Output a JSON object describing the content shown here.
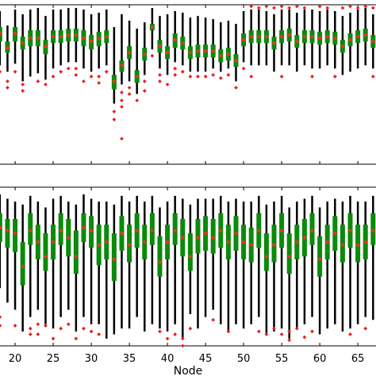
{
  "chart_data": [
    {
      "type": "boxplot",
      "panel": "top",
      "x": [
        18,
        19,
        20,
        21,
        22,
        23,
        24,
        25,
        26,
        27,
        28,
        29,
        30,
        31,
        32,
        33,
        34,
        35,
        36,
        37,
        38,
        39,
        40,
        41,
        42,
        43,
        44,
        45,
        46,
        47,
        48,
        49,
        50,
        51,
        52,
        53,
        54,
        55,
        56,
        57,
        58,
        59,
        60,
        61,
        62,
        63,
        64,
        65,
        66,
        67
      ],
      "median": [
        0.82,
        0.73,
        0.82,
        0.76,
        0.79,
        0.79,
        0.74,
        0.8,
        0.8,
        0.81,
        0.81,
        0.79,
        0.77,
        0.79,
        0.8,
        0.52,
        0.62,
        0.7,
        0.55,
        0.69,
        0.86,
        0.74,
        0.7,
        0.78,
        0.76,
        0.7,
        0.71,
        0.71,
        0.71,
        0.68,
        0.69,
        0.65,
        0.78,
        0.8,
        0.8,
        0.8,
        0.76,
        0.8,
        0.81,
        0.77,
        0.8,
        0.8,
        0.79,
        0.8,
        0.79,
        0.74,
        0.78,
        0.8,
        0.81,
        0.77
      ],
      "q1": [
        0.77,
        0.7,
        0.77,
        0.72,
        0.74,
        0.74,
        0.69,
        0.76,
        0.76,
        0.77,
        0.77,
        0.74,
        0.72,
        0.74,
        0.76,
        0.47,
        0.58,
        0.66,
        0.51,
        0.65,
        0.84,
        0.7,
        0.66,
        0.73,
        0.72,
        0.66,
        0.67,
        0.67,
        0.67,
        0.64,
        0.65,
        0.61,
        0.74,
        0.76,
        0.76,
        0.76,
        0.72,
        0.76,
        0.77,
        0.73,
        0.76,
        0.76,
        0.75,
        0.76,
        0.75,
        0.7,
        0.74,
        0.76,
        0.77,
        0.73
      ],
      "q3": [
        0.86,
        0.77,
        0.86,
        0.8,
        0.84,
        0.84,
        0.78,
        0.84,
        0.84,
        0.85,
        0.85,
        0.84,
        0.81,
        0.83,
        0.84,
        0.56,
        0.65,
        0.74,
        0.59,
        0.73,
        0.88,
        0.78,
        0.74,
        0.82,
        0.8,
        0.74,
        0.75,
        0.75,
        0.75,
        0.72,
        0.73,
        0.69,
        0.82,
        0.84,
        0.84,
        0.84,
        0.8,
        0.84,
        0.85,
        0.81,
        0.84,
        0.84,
        0.83,
        0.84,
        0.83,
        0.78,
        0.82,
        0.84,
        0.85,
        0.81
      ],
      "whisker_low": [
        0.62,
        0.58,
        0.63,
        0.52,
        0.55,
        0.57,
        0.53,
        0.6,
        0.62,
        0.64,
        0.64,
        0.6,
        0.58,
        0.6,
        0.62,
        0.38,
        0.5,
        0.52,
        0.44,
        0.56,
        0.72,
        0.6,
        0.56,
        0.64,
        0.62,
        0.58,
        0.58,
        0.58,
        0.6,
        0.58,
        0.6,
        0.52,
        0.64,
        0.62,
        0.62,
        0.62,
        0.58,
        0.62,
        0.62,
        0.58,
        0.62,
        0.6,
        0.6,
        0.62,
        0.6,
        0.56,
        0.58,
        0.6,
        0.62,
        0.6
      ],
      "whisker_high": [
        0.96,
        0.87,
        0.97,
        0.94,
        0.97,
        0.98,
        0.93,
        0.97,
        0.97,
        0.98,
        0.98,
        0.97,
        0.94,
        0.95,
        0.97,
        0.86,
        0.94,
        0.9,
        0.85,
        0.89,
        0.98,
        0.93,
        0.94,
        0.96,
        0.95,
        0.92,
        0.93,
        0.92,
        0.91,
        0.89,
        0.9,
        0.88,
        0.96,
        0.97,
        0.97,
        0.96,
        0.94,
        0.97,
        0.97,
        0.95,
        0.97,
        0.97,
        0.96,
        0.97,
        0.96,
        0.93,
        0.95,
        0.97,
        0.98,
        0.94
      ],
      "outliers": [
        [
          18,
          0.58
        ],
        [
          19,
          0.52
        ],
        [
          19,
          0.48
        ],
        [
          20,
          0.58
        ],
        [
          21,
          0.5
        ],
        [
          21,
          0.46
        ],
        [
          23,
          0.52
        ],
        [
          24,
          0.5
        ],
        [
          25,
          0.55
        ],
        [
          26,
          0.58
        ],
        [
          27,
          0.6
        ],
        [
          28,
          0.6
        ],
        [
          28,
          0.56
        ],
        [
          29,
          0.52
        ],
        [
          30,
          0.55
        ],
        [
          31,
          0.55
        ],
        [
          31,
          0.51
        ],
        [
          32,
          0.58
        ],
        [
          33,
          0.33
        ],
        [
          33,
          0.28
        ],
        [
          34,
          0.45
        ],
        [
          34,
          0.4
        ],
        [
          34,
          0.36
        ],
        [
          34,
          0.16
        ],
        [
          35,
          0.48
        ],
        [
          35,
          0.44
        ],
        [
          36,
          0.4
        ],
        [
          37,
          0.52
        ],
        [
          37,
          0.46
        ],
        [
          38,
          0.68
        ],
        [
          39,
          0.56
        ],
        [
          39,
          0.52
        ],
        [
          40,
          0.5
        ],
        [
          41,
          0.6
        ],
        [
          41,
          0.56
        ],
        [
          42,
          0.58
        ],
        [
          43,
          0.55
        ],
        [
          44,
          0.55
        ],
        [
          45,
          0.55
        ],
        [
          46,
          0.56
        ],
        [
          47,
          0.54
        ],
        [
          48,
          0.56
        ],
        [
          49,
          0.48
        ],
        [
          50,
          0.6
        ],
        [
          51,
          0.99
        ],
        [
          51,
          0.55
        ],
        [
          52,
          0.98
        ],
        [
          53,
          0.99
        ],
        [
          54,
          0.98
        ],
        [
          55,
          0.99
        ],
        [
          55,
          0.55
        ],
        [
          56,
          0.98
        ],
        [
          57,
          0.99
        ],
        [
          58,
          0.98
        ],
        [
          59,
          0.55
        ],
        [
          60,
          0.99
        ],
        [
          61,
          0.98
        ],
        [
          62,
          0.55
        ],
        [
          63,
          0.98
        ],
        [
          64,
          0.99
        ],
        [
          65,
          0.98
        ],
        [
          66,
          0.99
        ],
        [
          67,
          0.98
        ],
        [
          67,
          0.55
        ]
      ],
      "ylim": [
        0.0,
        1.0
      ]
    },
    {
      "type": "boxplot",
      "panel": "bottom",
      "x": [
        18,
        19,
        20,
        21,
        22,
        23,
        24,
        25,
        26,
        27,
        28,
        29,
        30,
        31,
        32,
        33,
        34,
        35,
        36,
        37,
        38,
        39,
        40,
        41,
        42,
        43,
        44,
        45,
        46,
        47,
        48,
        49,
        50,
        51,
        52,
        53,
        54,
        55,
        56,
        57,
        58,
        59,
        60,
        61,
        62,
        63,
        64,
        65,
        66,
        67
      ],
      "median": [
        0.82,
        0.8,
        0.78,
        0.55,
        0.8,
        0.72,
        0.62,
        0.72,
        0.8,
        0.75,
        0.62,
        0.82,
        0.8,
        0.7,
        0.72,
        0.6,
        0.78,
        0.7,
        0.8,
        0.72,
        0.8,
        0.58,
        0.72,
        0.8,
        0.75,
        0.62,
        0.75,
        0.78,
        0.75,
        0.8,
        0.72,
        0.78,
        0.72,
        0.7,
        0.8,
        0.62,
        0.7,
        0.8,
        0.62,
        0.72,
        0.75,
        0.8,
        0.6,
        0.72,
        0.78,
        0.7,
        0.8,
        0.7,
        0.72,
        0.8
      ],
      "q1": [
        0.72,
        0.68,
        0.65,
        0.42,
        0.7,
        0.6,
        0.52,
        0.6,
        0.7,
        0.62,
        0.5,
        0.72,
        0.68,
        0.56,
        0.6,
        0.45,
        0.66,
        0.58,
        0.68,
        0.6,
        0.7,
        0.48,
        0.6,
        0.7,
        0.62,
        0.52,
        0.64,
        0.66,
        0.64,
        0.68,
        0.6,
        0.66,
        0.6,
        0.58,
        0.68,
        0.52,
        0.58,
        0.68,
        0.5,
        0.6,
        0.62,
        0.7,
        0.48,
        0.6,
        0.66,
        0.58,
        0.68,
        0.58,
        0.6,
        0.7
      ],
      "q3": [
        0.92,
        0.88,
        0.88,
        0.72,
        0.92,
        0.84,
        0.78,
        0.84,
        0.92,
        0.88,
        0.8,
        0.92,
        0.9,
        0.84,
        0.84,
        0.78,
        0.9,
        0.84,
        0.92,
        0.84,
        0.92,
        0.76,
        0.84,
        0.92,
        0.88,
        0.78,
        0.88,
        0.9,
        0.88,
        0.92,
        0.84,
        0.9,
        0.84,
        0.82,
        0.92,
        0.78,
        0.84,
        0.92,
        0.78,
        0.84,
        0.88,
        0.92,
        0.76,
        0.84,
        0.9,
        0.84,
        0.92,
        0.84,
        0.84,
        0.92
      ],
      "whisker_low": [
        0.4,
        0.3,
        0.25,
        0.1,
        0.2,
        0.25,
        0.15,
        0.12,
        0.2,
        0.25,
        0.1,
        0.2,
        0.15,
        0.15,
        0.05,
        0.08,
        0.12,
        0.12,
        0.2,
        0.1,
        0.15,
        0.12,
        0.1,
        0.15,
        0.05,
        0.22,
        0.12,
        0.2,
        0.25,
        0.15,
        0.1,
        0.15,
        0.12,
        0.15,
        0.2,
        0.08,
        0.1,
        0.12,
        0.05,
        0.12,
        0.15,
        0.2,
        0.08,
        0.12,
        0.15,
        0.1,
        0.12,
        0.15,
        0.2,
        0.18
      ],
      "whisker_high": [
        1.05,
        1.02,
        1.0,
        0.98,
        1.04,
        1.0,
        0.96,
        1.02,
        1.04,
        1.0,
        0.98,
        1.05,
        1.02,
        1.0,
        1.0,
        0.98,
        1.04,
        1.0,
        1.04,
        1.0,
        1.04,
        0.96,
        1.0,
        1.04,
        1.02,
        0.98,
        1.02,
        1.02,
        1.02,
        1.04,
        1.0,
        1.02,
        1.0,
        1.0,
        1.04,
        0.98,
        1.0,
        1.04,
        0.96,
        1.0,
        1.02,
        1.04,
        0.96,
        1.0,
        1.02,
        1.0,
        1.04,
        1.0,
        1.0,
        1.04
      ],
      "outliers": [
        [
          18,
          0.2
        ],
        [
          18,
          0.14
        ],
        [
          20,
          0.14
        ],
        [
          22,
          0.12
        ],
        [
          22,
          0.08
        ],
        [
          23,
          0.15
        ],
        [
          23,
          0.08
        ],
        [
          24,
          0.14
        ],
        [
          25,
          0.05
        ],
        [
          26,
          0.12
        ],
        [
          27,
          0.15
        ],
        [
          28,
          0.05
        ],
        [
          29,
          0.12
        ],
        [
          30,
          0.1
        ],
        [
          31,
          0.08
        ],
        [
          39,
          0.1
        ],
        [
          40,
          0.05
        ],
        [
          41,
          0.08
        ],
        [
          42,
          0.0
        ],
        [
          42,
          0.05
        ],
        [
          43,
          0.12
        ],
        [
          46,
          0.18
        ],
        [
          48,
          0.1
        ],
        [
          52,
          0.1
        ],
        [
          53,
          0.08
        ],
        [
          54,
          0.12
        ],
        [
          55,
          0.08
        ],
        [
          56,
          0.1
        ],
        [
          56,
          0.04
        ],
        [
          57,
          0.12
        ],
        [
          58,
          0.06
        ],
        [
          59,
          0.1
        ],
        [
          64,
          0.08
        ],
        [
          66,
          0.12
        ]
      ],
      "ylim": [
        0.0,
        1.1
      ]
    }
  ],
  "shared_axis": {
    "xlabel": "Node",
    "xticks": [
      20,
      25,
      30,
      35,
      40,
      45,
      50,
      55,
      60,
      65
    ],
    "xlim": [
      17.6,
      67.8
    ]
  },
  "colors": {
    "box_fill": "#0a8a0a",
    "whisker": "#000000",
    "median_marker": "#e8332a",
    "outlier": "#e82020",
    "axis": "#000000"
  }
}
